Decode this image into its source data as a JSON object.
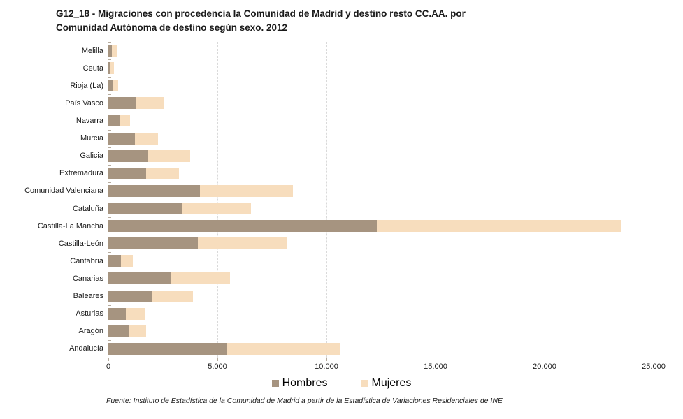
{
  "title": {
    "line1": "G12_18 - Migraciones con procedencia la Comunidad de Madrid y destino resto CC.AA. por",
    "line2": "Comunidad Autónoma de destino según sexo. 2012"
  },
  "footer": "Fuente: Instituto de Estadística de la Comunidad de Madrid a partir de la Estadística de Variaciones Residenciales de INE",
  "colors": {
    "hombres": "#A69480",
    "mujeres": "#F7DDBD",
    "gridline": "#D9D9D9",
    "axis": "#C9BEB2",
    "text": "#1A1A1A"
  },
  "chart_data": {
    "type": "bar",
    "orientation": "horizontal",
    "stacked": true,
    "title": "G12_18 - Migraciones con procedencia la Comunidad de Madrid y destino resto CC.AA. por Comunidad Autónoma de destino según sexo. 2012",
    "categories": [
      "Melilla",
      "Ceuta",
      "Rioja (La)",
      "País Vasco",
      "Navarra",
      "Murcia",
      "Galicia",
      "Extremadura",
      "Comunidad Valenciana",
      "Cataluña",
      "Castilla-La Mancha",
      "Castilla-León",
      "Cantabria",
      "Canarias",
      "Baleares",
      "Asturias",
      "Aragón",
      "Andalucía"
    ],
    "series": [
      {
        "name": "Hombres",
        "color": "#A69480",
        "values": [
          170,
          110,
          210,
          1270,
          510,
          1210,
          1800,
          1720,
          4200,
          3350,
          12300,
          4100,
          580,
          2890,
          2010,
          800,
          950,
          5430
        ]
      },
      {
        "name": "Mujeres",
        "color": "#F7DDBD",
        "values": [
          210,
          140,
          230,
          1300,
          470,
          1050,
          1940,
          1520,
          4250,
          3200,
          11240,
          4060,
          550,
          2700,
          1870,
          860,
          780,
          5220
        ]
      }
    ],
    "xlim": [
      0,
      25000
    ],
    "x_ticks": [
      0,
      5000,
      10000,
      15000,
      20000,
      25000
    ],
    "x_tick_labels": [
      "0",
      "5.000",
      "10.000",
      "15.000",
      "20.000",
      "25.000"
    ],
    "grid": "vertical-dashed",
    "legend_position": "bottom-center",
    "xlabel": "",
    "ylabel": ""
  }
}
